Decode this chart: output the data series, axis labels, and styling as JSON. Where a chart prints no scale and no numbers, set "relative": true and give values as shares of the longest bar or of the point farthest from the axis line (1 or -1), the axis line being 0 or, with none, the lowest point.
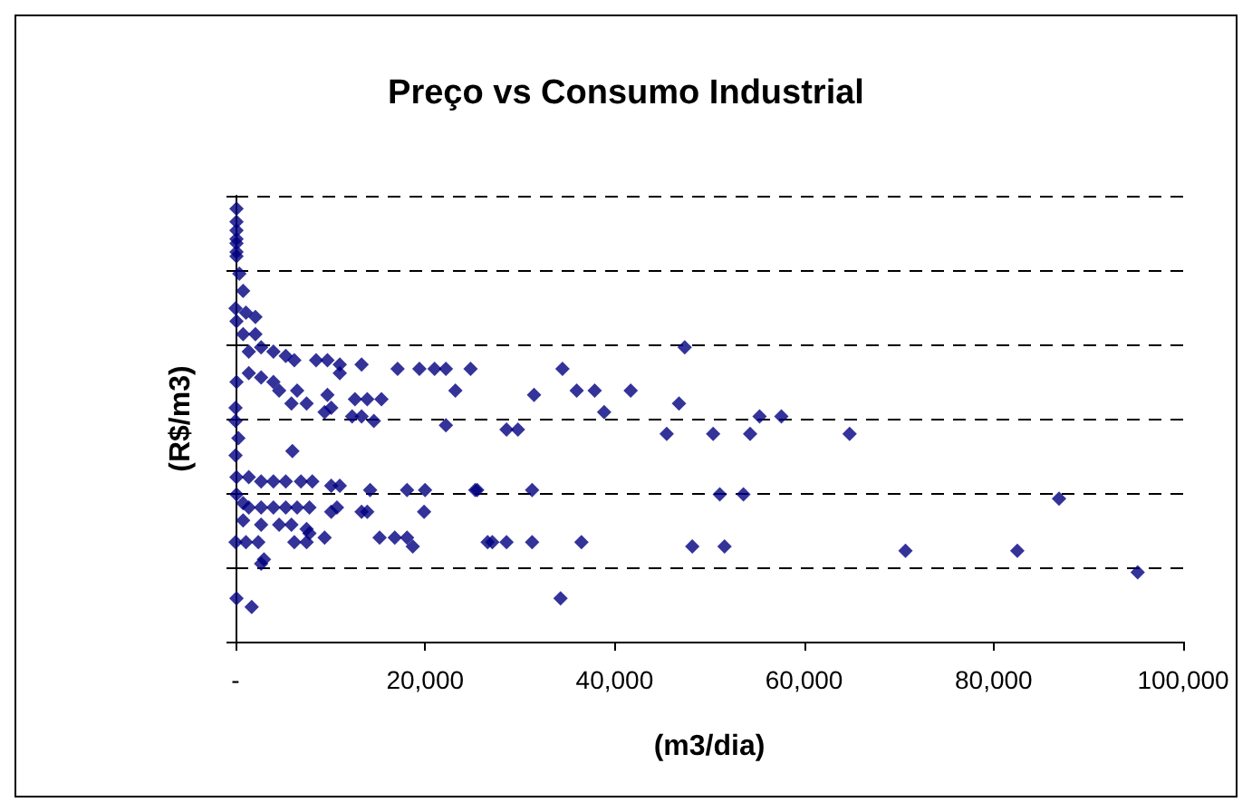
{
  "chart_data": {
    "type": "scatter",
    "title": "Preço vs Consumo Industrial",
    "xlabel": "(m3/dia)",
    "ylabel": "(R$/m3)",
    "relative": true,
    "grid": "y",
    "marker": "diamond",
    "xlim": [
      0,
      100000
    ],
    "xticks": [
      {
        "value": 0,
        "label": "-"
      },
      {
        "value": 20000,
        "label": "20,000"
      },
      {
        "value": 40000,
        "label": "40,000"
      },
      {
        "value": 60000,
        "label": "60,000"
      },
      {
        "value": 80000,
        "label": "80,000"
      },
      {
        "value": 100000,
        "label": "100,000"
      }
    ],
    "series": [
      {
        "color": "#000080",
        "x": [
          100,
          100,
          100,
          100,
          100,
          100,
          100,
          400,
          800,
          0,
          1100,
          100,
          2100,
          800,
          2100,
          1400,
          2700,
          4000,
          5300,
          6200,
          8500,
          9700,
          11000,
          13300,
          17100,
          19400,
          21000,
          22200,
          24800,
          11000,
          100,
          1400,
          2700,
          4000,
          4600,
          6500,
          5900,
          7500,
          9700,
          9400,
          10100,
          12600,
          13900,
          15400,
          12300,
          13300,
          14600,
          23200,
          22200,
          0,
          0,
          300,
          0,
          6000,
          100,
          1400,
          2700,
          4000,
          5300,
          6900,
          8100,
          10100,
          11000,
          14200,
          18100,
          20000,
          25300,
          100,
          800,
          1400,
          2700,
          4000,
          5300,
          6500,
          7800,
          10700,
          10100,
          13300,
          13900,
          19900,
          800,
          2700,
          4600,
          5900,
          7500,
          7800,
          9400,
          15200,
          16800,
          18100,
          18700,
          6200,
          7500,
          0,
          1100,
          2400,
          3000,
          2700,
          100,
          1700,
          26600,
          34500,
          31500,
          36000,
          37900,
          38900,
          41700,
          47400,
          46800,
          28600,
          29800,
          45500,
          50400,
          54300,
          55300,
          57600,
          64800,
          25500,
          31300,
          51100,
          53600,
          86900,
          27100,
          28600,
          31300,
          36500,
          48200,
          51600,
          70700,
          82500,
          95200,
          34300
        ],
        "values": [
          1.0,
          0.97,
          0.95,
          0.93,
          0.92,
          0.9,
          0.89,
          0.85,
          0.81,
          0.77,
          0.76,
          0.74,
          0.75,
          0.71,
          0.71,
          0.67,
          0.68,
          0.67,
          0.66,
          0.65,
          0.65,
          0.65,
          0.64,
          0.64,
          0.63,
          0.63,
          0.63,
          0.63,
          0.63,
          0.62,
          0.6,
          0.62,
          0.61,
          0.6,
          0.58,
          0.58,
          0.55,
          0.55,
          0.57,
          0.53,
          0.54,
          0.56,
          0.56,
          0.56,
          0.52,
          0.52,
          0.51,
          0.58,
          0.5,
          0.54,
          0.51,
          0.47,
          0.43,
          0.44,
          0.38,
          0.38,
          0.37,
          0.37,
          0.37,
          0.37,
          0.37,
          0.36,
          0.36,
          0.35,
          0.35,
          0.35,
          0.35,
          0.34,
          0.32,
          0.31,
          0.31,
          0.31,
          0.31,
          0.31,
          0.31,
          0.31,
          0.3,
          0.3,
          0.3,
          0.3,
          0.28,
          0.27,
          0.27,
          0.27,
          0.26,
          0.25,
          0.24,
          0.24,
          0.24,
          0.24,
          0.22,
          0.23,
          0.23,
          0.23,
          0.23,
          0.23,
          0.19,
          0.18,
          0.1,
          0.08,
          0.23,
          0.63,
          0.57,
          0.58,
          0.58,
          0.53,
          0.58,
          0.68,
          0.55,
          0.49,
          0.49,
          0.48,
          0.48,
          0.48,
          0.52,
          0.52,
          0.48,
          0.35,
          0.35,
          0.34,
          0.34,
          0.33,
          0.23,
          0.23,
          0.23,
          0.23,
          0.22,
          0.22,
          0.21,
          0.21,
          0.16,
          0.1
        ]
      }
    ]
  }
}
